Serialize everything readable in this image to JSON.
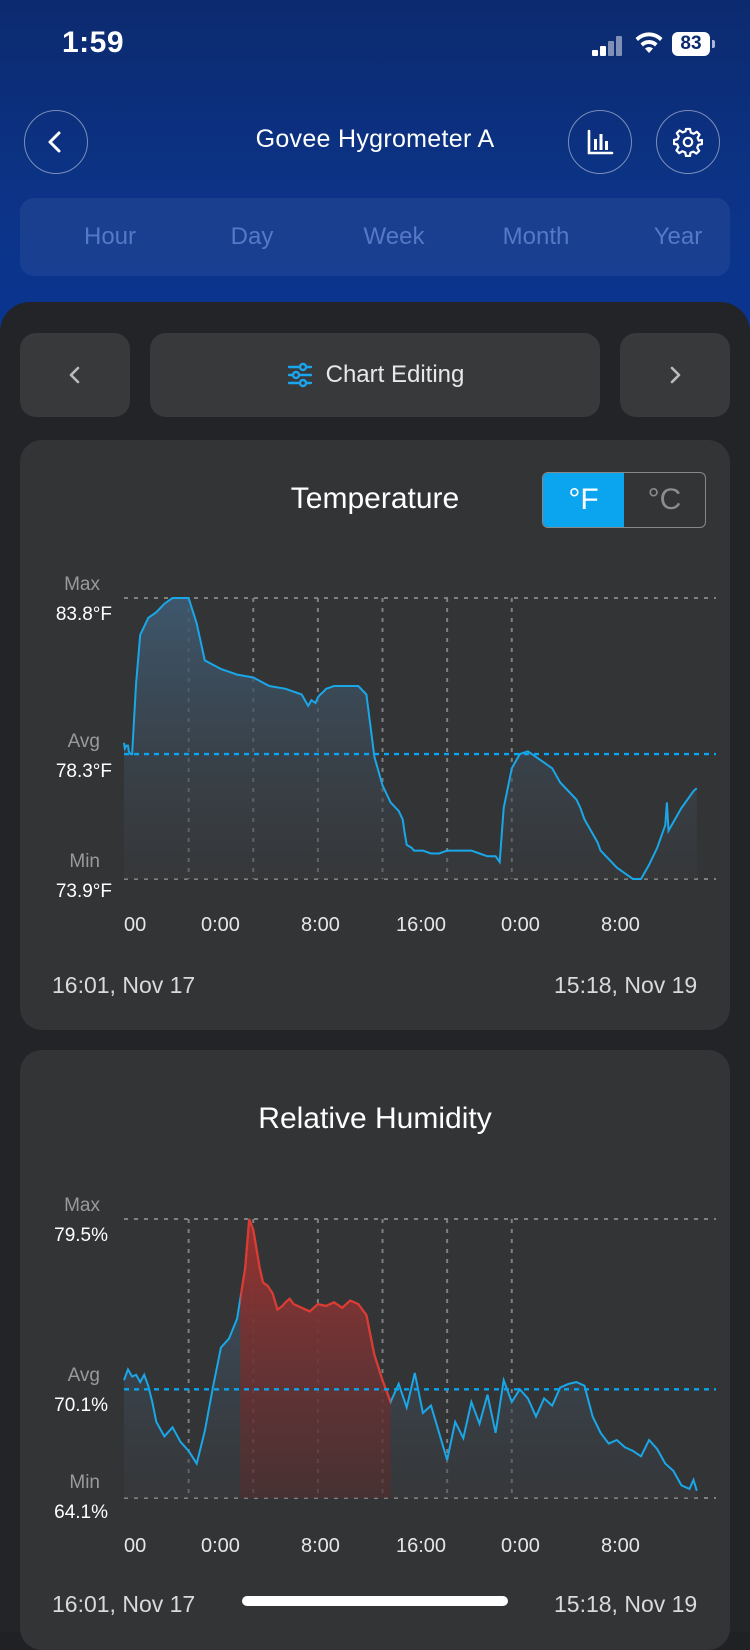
{
  "status_bar": {
    "time": "1:59",
    "battery": "83"
  },
  "header": {
    "title": "Govee Hygrometer A",
    "back_icon": "chevron-left-icon",
    "chart_icon": "bar-chart-icon",
    "settings_icon": "gear-icon"
  },
  "range_tabs": [
    "Hour",
    "Day",
    "Week",
    "Month",
    "Year"
  ],
  "chart_nav": {
    "edit_label": "Chart Editing",
    "prev_icon": "chevron-left-icon",
    "next_icon": "chevron-right-icon",
    "edit_icon": "sliders-icon"
  },
  "colors": {
    "accent": "#0aa5ee",
    "line": "#1aa7e8",
    "alert": "#e0392f"
  },
  "temperature": {
    "title": "Temperature",
    "units": {
      "f": "°F",
      "c": "°C",
      "selected": "°F"
    },
    "max_label": "Max",
    "max_value": "83.8°F",
    "avg_label": "Avg",
    "avg_value": "78.3°F",
    "min_label": "Min",
    "min_value": "73.9°F",
    "x_ticks": [
      "00",
      "0:00",
      "8:00",
      "16:00",
      "0:00",
      "8:00"
    ],
    "start": "16:01,  Nov 17",
    "end": "15:18,  Nov 19"
  },
  "humidity": {
    "title": "Relative Humidity",
    "max_label": "Max",
    "max_value": "79.5%",
    "avg_label": "Avg",
    "avg_value": "70.1%",
    "min_label": "Min",
    "min_value": "64.1%",
    "x_ticks": [
      "00",
      "0:00",
      "8:00",
      "16:00",
      "0:00",
      "8:00"
    ],
    "start": "16:01,  Nov 17",
    "end": "15:18,  Nov 19"
  },
  "chart_data": [
    {
      "type": "area",
      "title": "Temperature",
      "y_unit": "°F",
      "ylim": [
        73.9,
        83.8
      ],
      "avg": 78.3,
      "x_hours": [
        0,
        0.1,
        0.3,
        0.5,
        0.6,
        0.8,
        1.0,
        1.5,
        2.0,
        3.0,
        4.0,
        5.0,
        6.0,
        7.0,
        7.5,
        8.0,
        9.0,
        10.0,
        12.0,
        14.0,
        16.0,
        18.0,
        20.0,
        22.0,
        22.8,
        23.2,
        23.7,
        24.0,
        24.3,
        24.7,
        25.0,
        26.0,
        28.0,
        29.0,
        30.0,
        31.0,
        32.0,
        33.0,
        34.0,
        34.5,
        34.7,
        35.0,
        35.6,
        35.9,
        36.5,
        37.0,
        38.0,
        39.0,
        40.0,
        41.0,
        42.0,
        43.0,
        44.0,
        45.0,
        46.0,
        46.5,
        47.0,
        48.0,
        49.0,
        50.0,
        51.0,
        52.0,
        53.0,
        54.0,
        55.0,
        56.0,
        56.5,
        57.0,
        58.0,
        58.6,
        59.0,
        60.0,
        61.0,
        62.0,
        63.0,
        63.5,
        64.0,
        65.0,
        66.0,
        67.0,
        67.2,
        67.4,
        68.0,
        69.0,
        70.0,
        70.5,
        70.9
      ],
      "values": [
        78.7,
        78.5,
        78.6,
        78.6,
        78.4,
        78.3,
        78.3,
        80.8,
        82.5,
        83.1,
        83.3,
        83.6,
        83.8,
        83.8,
        83.8,
        83.8,
        82.9,
        81.6,
        81.3,
        81.1,
        81.0,
        80.7,
        80.6,
        80.4,
        80.0,
        80.2,
        80.1,
        80.3,
        80.4,
        80.5,
        80.6,
        80.7,
        80.7,
        80.7,
        80.4,
        78.2,
        77.2,
        76.6,
        76.3,
        76.0,
        75.6,
        75.1,
        75.0,
        74.9,
        74.9,
        74.9,
        74.8,
        74.8,
        74.9,
        74.9,
        74.9,
        74.9,
        74.8,
        74.7,
        74.7,
        74.5,
        76.4,
        77.8,
        78.3,
        78.4,
        78.2,
        78.0,
        77.8,
        77.3,
        77.0,
        76.7,
        76.4,
        76.0,
        75.5,
        75.2,
        74.9,
        74.6,
        74.3,
        74.1,
        73.9,
        73.9,
        73.9,
        74.4,
        75.0,
        75.8,
        76.6,
        75.6,
        75.9,
        76.4,
        76.8,
        77.0,
        77.1
      ]
    },
    {
      "type": "area",
      "title": "Relative Humidity",
      "y_unit": "%",
      "ylim": [
        64.1,
        79.5
      ],
      "avg": 70.1,
      "x_hours": [
        0,
        0.5,
        1.0,
        1.5,
        2.0,
        2.5,
        3.0,
        3.5,
        4.0,
        5.0,
        6.0,
        7.0,
        8.0,
        9.0,
        10.0,
        11.0,
        12.0,
        13.0,
        14.0,
        15.0,
        15.5,
        16.0,
        16.8,
        17.2,
        17.8,
        18.4,
        19.0,
        19.6,
        20.0,
        20.5,
        21.0,
        22.0,
        23.0,
        24.0,
        25.0,
        26.0,
        27.0,
        28.0,
        29.0,
        30.0,
        31.0,
        32.0,
        33.0,
        34.0,
        35.0,
        36.0,
        37.0,
        38.0,
        39.0,
        40.0,
        41.0,
        42.0,
        43.0,
        44.0,
        45.0,
        46.0,
        47.0,
        48.0,
        49.0,
        50.0,
        51.0,
        52.0,
        53.0,
        54.0,
        55.0,
        56.0,
        57.0,
        58.0,
        59.0,
        60.0,
        61.0,
        62.0,
        63.0,
        64.0,
        65.0,
        66.0,
        67.0,
        68.0,
        69.0,
        70.0,
        70.5,
        70.9
      ],
      "values": [
        70.6,
        71.2,
        70.8,
        70.9,
        70.5,
        70.9,
        70.3,
        69.4,
        68.3,
        67.5,
        68.0,
        67.2,
        66.7,
        66.0,
        67.8,
        70.2,
        72.4,
        72.9,
        74.0,
        76.8,
        79.5,
        78.9,
        76.8,
        76.0,
        75.8,
        75.4,
        74.5,
        74.7,
        74.9,
        75.1,
        74.8,
        74.6,
        74.4,
        74.8,
        74.7,
        74.9,
        74.6,
        75.0,
        74.8,
        74.2,
        72.0,
        70.6,
        69.4,
        70.4,
        69.1,
        71.0,
        68.8,
        69.2,
        67.7,
        66.2,
        68.3,
        67.4,
        69.4,
        68.2,
        69.8,
        67.7,
        70.6,
        69.4,
        70.1,
        69.6,
        68.6,
        69.6,
        69.2,
        70.2,
        70.4,
        70.5,
        70.3,
        68.6,
        67.7,
        67.1,
        67.3,
        66.9,
        66.7,
        66.4,
        67.3,
        66.8,
        66.0,
        65.6,
        64.8,
        64.6,
        65.1,
        64.5
      ]
    }
  ]
}
